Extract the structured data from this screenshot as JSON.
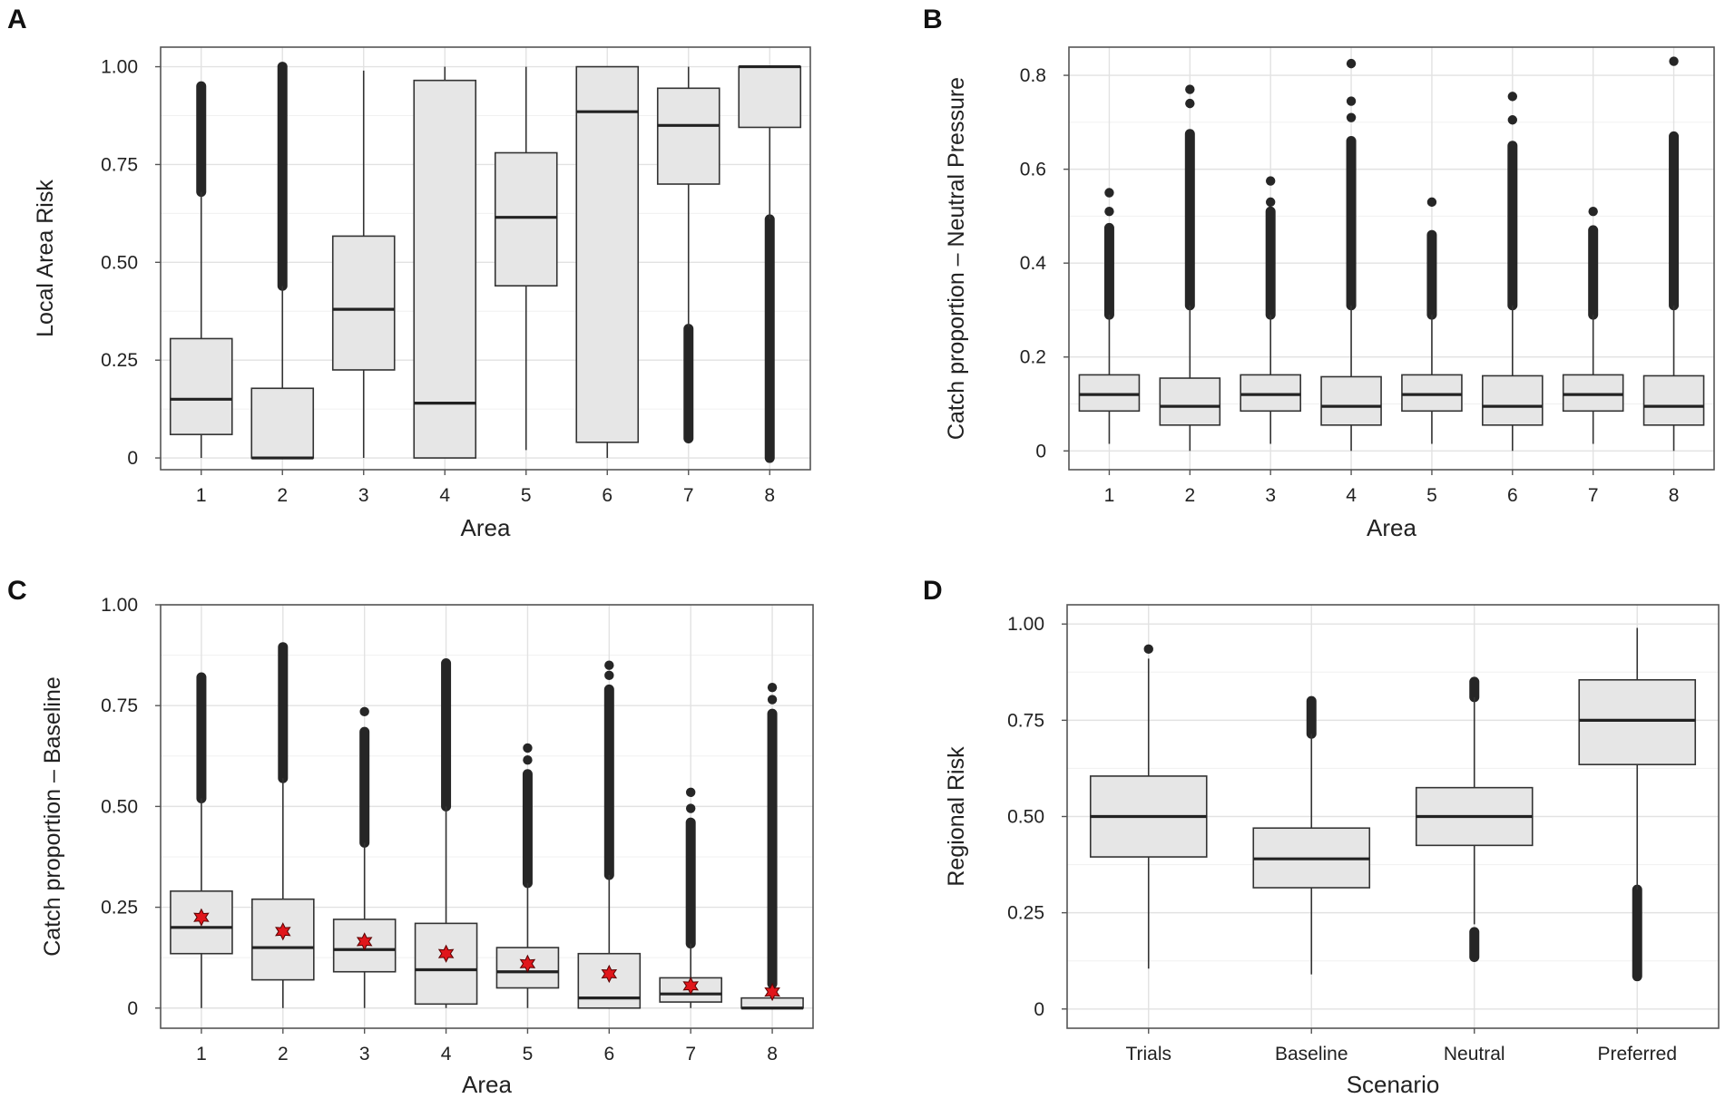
{
  "chart_data": [
    {
      "panel": "A",
      "type": "box",
      "title": "",
      "xlabel": "Area",
      "ylabel": "Local Area Risk",
      "categories": [
        "1",
        "2",
        "3",
        "4",
        "5",
        "6",
        "7",
        "8"
      ],
      "ylim": [
        -0.03,
        1.05
      ],
      "yticks": [
        0,
        0.25,
        0.5,
        0.75,
        1.0
      ],
      "ytick_labels": [
        "0",
        "0.25",
        "0.50",
        "0.75",
        "1.00"
      ],
      "grid": true,
      "boxes": [
        {
          "min": 0.0,
          "q1": 0.06,
          "median": 0.15,
          "q3": 0.305,
          "whisker_high": 0.68,
          "outliers_high": [
            0.68,
            0.95
          ]
        },
        {
          "min": 0.0,
          "q1": 0.0,
          "median": 0.0,
          "q3": 0.178,
          "whisker_high": 0.44,
          "outliers_high": [
            0.44,
            1.0
          ]
        },
        {
          "min": 0.0,
          "q1": 0.225,
          "median": 0.38,
          "q3": 0.567,
          "whisker_high": 0.99
        },
        {
          "min": 0.0,
          "q1": 0.0,
          "median": 0.14,
          "q3": 0.965,
          "whisker_high": 1.0
        },
        {
          "min": 0.02,
          "q1": 0.44,
          "median": 0.615,
          "q3": 0.78,
          "whisker_high": 1.0
        },
        {
          "min": 0.0,
          "q1": 0.04,
          "median": 0.885,
          "q3": 1.0,
          "whisker_high": 1.0
        },
        {
          "min": 0.335,
          "q1": 0.7,
          "median": 0.85,
          "q3": 0.945,
          "whisker_high": 1.0,
          "outliers_low": [
            0.05,
            0.33
          ]
        },
        {
          "min": 0.61,
          "q1": 0.845,
          "median": 1.0,
          "q3": 1.0,
          "whisker_high": 1.0,
          "outliers_low": [
            0.0,
            0.61
          ]
        }
      ]
    },
    {
      "panel": "B",
      "type": "box",
      "title": "",
      "xlabel": "Area",
      "ylabel": "Catch proportion – Neutral Pressure",
      "categories": [
        "1",
        "2",
        "3",
        "4",
        "5",
        "6",
        "7",
        "8"
      ],
      "ylim": [
        -0.04,
        0.86
      ],
      "yticks": [
        0,
        0.2,
        0.4,
        0.6,
        0.8
      ],
      "ytick_labels": [
        "0",
        "0.2",
        "0.4",
        "0.6",
        "0.8"
      ],
      "grid": true,
      "boxes": [
        {
          "min": 0.015,
          "q1": 0.085,
          "median": 0.12,
          "q3": 0.162,
          "whisker_high": 0.29,
          "outliers_high": [
            0.29,
            0.475
          ],
          "extra_points": [
            0.51,
            0.55
          ]
        },
        {
          "min": 0.0,
          "q1": 0.055,
          "median": 0.095,
          "q3": 0.155,
          "whisker_high": 0.31,
          "outliers_high": [
            0.31,
            0.675
          ],
          "extra_points": [
            0.74,
            0.77
          ]
        },
        {
          "min": 0.015,
          "q1": 0.085,
          "median": 0.12,
          "q3": 0.162,
          "whisker_high": 0.29,
          "outliers_high": [
            0.29,
            0.51
          ],
          "extra_points": [
            0.53,
            0.575
          ]
        },
        {
          "min": 0.0,
          "q1": 0.055,
          "median": 0.095,
          "q3": 0.158,
          "whisker_high": 0.31,
          "outliers_high": [
            0.31,
            0.66
          ],
          "extra_points": [
            0.71,
            0.745,
            0.825
          ]
        },
        {
          "min": 0.015,
          "q1": 0.085,
          "median": 0.12,
          "q3": 0.162,
          "whisker_high": 0.29,
          "outliers_high": [
            0.29,
            0.46
          ],
          "extra_points": [
            0.53
          ]
        },
        {
          "min": 0.0,
          "q1": 0.055,
          "median": 0.095,
          "q3": 0.16,
          "whisker_high": 0.31,
          "outliers_high": [
            0.31,
            0.65
          ],
          "extra_points": [
            0.705,
            0.755
          ]
        },
        {
          "min": 0.015,
          "q1": 0.085,
          "median": 0.12,
          "q3": 0.162,
          "whisker_high": 0.29,
          "outliers_high": [
            0.29,
            0.47
          ],
          "extra_points": [
            0.51
          ]
        },
        {
          "min": 0.0,
          "q1": 0.055,
          "median": 0.095,
          "q3": 0.16,
          "whisker_high": 0.31,
          "outliers_high": [
            0.31,
            0.67
          ],
          "extra_points": [
            0.83
          ]
        }
      ]
    },
    {
      "panel": "C",
      "type": "box",
      "title": "",
      "xlabel": "Area",
      "ylabel": "Catch proportion – Baseline",
      "categories": [
        "1",
        "2",
        "3",
        "4",
        "5",
        "6",
        "7",
        "8"
      ],
      "ylim": [
        -0.05,
        1.0
      ],
      "yticks": [
        0,
        0.25,
        0.5,
        0.75,
        1.0
      ],
      "ytick_labels": [
        "0",
        "0.25",
        "0.50",
        "0.75",
        "1.00"
      ],
      "grid": true,
      "boxes": [
        {
          "min": 0.0,
          "q1": 0.135,
          "median": 0.2,
          "q3": 0.29,
          "whisker_high": 0.52,
          "outliers_high": [
            0.52,
            0.82
          ],
          "mean": 0.225
        },
        {
          "min": 0.0,
          "q1": 0.07,
          "median": 0.15,
          "q3": 0.27,
          "whisker_high": 0.57,
          "outliers_high": [
            0.57,
            0.895
          ],
          "mean": 0.19
        },
        {
          "min": 0.0,
          "q1": 0.09,
          "median": 0.145,
          "q3": 0.22,
          "whisker_high": 0.41,
          "outliers_high": [
            0.41,
            0.685
          ],
          "extra_points": [
            0.735
          ],
          "mean": 0.165
        },
        {
          "min": 0.0,
          "q1": 0.01,
          "median": 0.095,
          "q3": 0.21,
          "whisker_high": 0.5,
          "outliers_high": [
            0.5,
            0.855
          ],
          "mean": 0.135
        },
        {
          "min": 0.0,
          "q1": 0.05,
          "median": 0.09,
          "q3": 0.15,
          "whisker_high": 0.31,
          "outliers_high": [
            0.31,
            0.58
          ],
          "extra_points": [
            0.615,
            0.645
          ],
          "mean": 0.11
        },
        {
          "min": 0.0,
          "q1": 0.0,
          "median": 0.025,
          "q3": 0.135,
          "whisker_high": 0.33,
          "outliers_high": [
            0.33,
            0.79
          ],
          "extra_points": [
            0.825,
            0.85
          ],
          "mean": 0.085
        },
        {
          "min": 0.0,
          "q1": 0.015,
          "median": 0.035,
          "q3": 0.075,
          "whisker_high": 0.16,
          "outliers_high": [
            0.16,
            0.46
          ],
          "extra_points": [
            0.495,
            0.535
          ],
          "mean": 0.055
        },
        {
          "min": 0.0,
          "q1": 0.0,
          "median": 0.0,
          "q3": 0.025,
          "whisker_high": 0.06,
          "outliers_high": [
            0.06,
            0.73
          ],
          "extra_points": [
            0.765,
            0.795
          ],
          "mean": 0.04
        }
      ],
      "mean_marker": "red star"
    },
    {
      "panel": "D",
      "type": "box",
      "title": "",
      "xlabel": "Scenario",
      "ylabel": "Regional Risk",
      "categories": [
        "Trials",
        "Baseline",
        "Neutral",
        "Preferred"
      ],
      "ylim": [
        -0.05,
        1.05
      ],
      "yticks": [
        0,
        0.25,
        0.5,
        0.75,
        1.0
      ],
      "ytick_labels": [
        "0",
        "0.25",
        "0.50",
        "0.75",
        "1.00"
      ],
      "grid": true,
      "boxes": [
        {
          "min": 0.105,
          "q1": 0.395,
          "median": 0.5,
          "q3": 0.605,
          "whisker_high": 0.91,
          "extra_points": [
            0.935
          ]
        },
        {
          "min": 0.09,
          "q1": 0.315,
          "median": 0.39,
          "q3": 0.47,
          "whisker_high": 0.715,
          "outliers_high": [
            0.715,
            0.8
          ]
        },
        {
          "min": 0.22,
          "q1": 0.425,
          "median": 0.5,
          "q3": 0.575,
          "whisker_high": 0.81,
          "outliers_high": [
            0.81,
            0.85
          ],
          "outliers_low": [
            0.135,
            0.2
          ]
        },
        {
          "min": 0.31,
          "q1": 0.635,
          "median": 0.75,
          "q3": 0.855,
          "whisker_high": 0.99,
          "outliers_low": [
            0.085,
            0.31
          ]
        }
      ]
    }
  ]
}
